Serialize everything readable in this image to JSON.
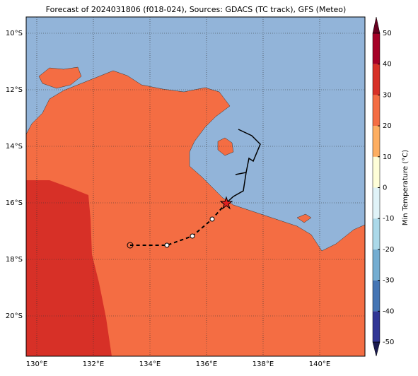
{
  "map": {
    "title": "Forecast of 2024031806 (f018-024), Sources: GDACS (TC track), GFS (Meteo)",
    "lonlim": [
      129.625,
      141.6
    ],
    "latlim": [
      -21.425,
      -9.425
    ],
    "lonticks": [
      {
        "value": 130,
        "label": "130°E"
      },
      {
        "value": 132,
        "label": "132°E"
      },
      {
        "value": 134,
        "label": "134°E"
      },
      {
        "value": 136,
        "label": "136°E"
      },
      {
        "value": 138,
        "label": "138°E"
      },
      {
        "value": 140,
        "label": "140°E"
      }
    ],
    "latticks": [
      {
        "value": -10,
        "label": "10°S"
      },
      {
        "value": -12,
        "label": "12°S"
      },
      {
        "value": -14,
        "label": "14°S"
      },
      {
        "value": -16,
        "label": "16°S"
      },
      {
        "value": -18,
        "label": "18°S"
      },
      {
        "value": -20,
        "label": "20°S"
      }
    ],
    "colorbar": {
      "label": "Min Temperature (°C)",
      "lim": [
        -50,
        50
      ],
      "ticks": [
        -50,
        -40,
        -30,
        -20,
        -10,
        0,
        10,
        20,
        30,
        40,
        50
      ],
      "colors": [
        "#313695",
        "#4575b4",
        "#74add1",
        "#abd9e9",
        "#e0f3f8",
        "#fefed8",
        "#fdae61",
        "#f46d43",
        "#d73027",
        "#a50026"
      ]
    }
  }
}
